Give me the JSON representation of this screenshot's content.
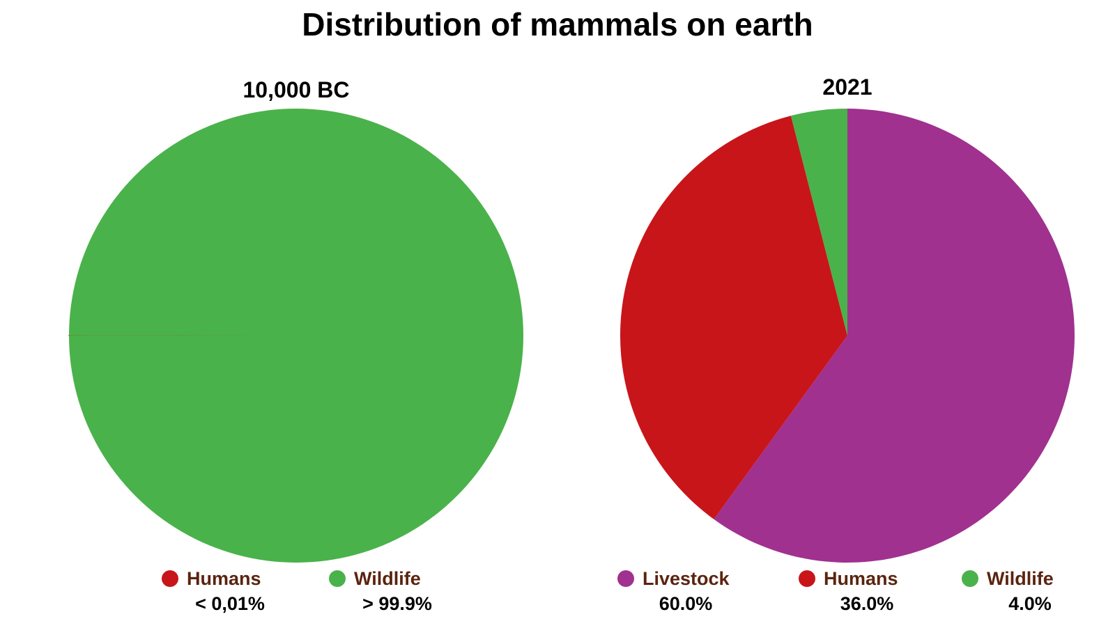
{
  "title": "Distribution of mammals on earth",
  "legend_text_color": "#5a2410",
  "chart_data": [
    {
      "type": "pie",
      "title": "10,000 BC",
      "start_angle_deg": 270,
      "direction": "clockwise",
      "slices": [
        {
          "name": "Humans",
          "value": 0.01,
          "color": "#c8151a",
          "label": "< 0,01%",
          "legend_visible": true
        },
        {
          "name": "Wildlife",
          "value": 99.99,
          "color": "#4ab24a",
          "label": "> 99.9%",
          "legend_visible": true
        }
      ]
    },
    {
      "type": "pie",
      "title": "2021",
      "start_angle_deg": 0,
      "direction": "clockwise",
      "slices": [
        {
          "name": "Livestock",
          "value": 60.0,
          "color": "#a0318f",
          "label": "60.0%",
          "legend_visible": true
        },
        {
          "name": "Humans",
          "value": 36.0,
          "color": "#c8151a",
          "label": "36.0%",
          "legend_visible": true
        },
        {
          "name": "Wildlife",
          "value": 4.0,
          "color": "#4ab24a",
          "label": "4.0%",
          "legend_visible": true
        }
      ]
    }
  ]
}
